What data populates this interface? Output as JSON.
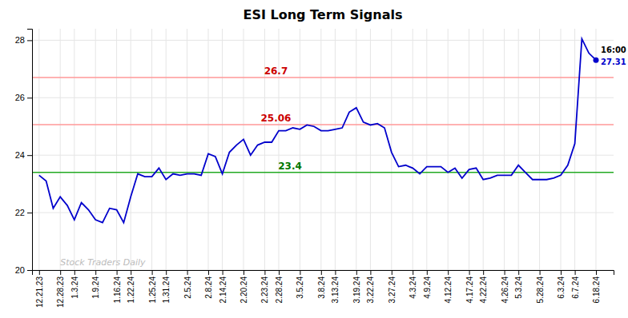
{
  "chart_data": {
    "type": "line",
    "title": "ESI Long Term Signals",
    "color": "#0000CC",
    "grid": true,
    "ylim": [
      20,
      28.4
    ],
    "yticks": [
      20,
      22,
      24,
      26,
      28
    ],
    "categories": [
      "12.21.23",
      null,
      null,
      "12.28.23",
      null,
      "1.3.24",
      null,
      null,
      "1.9.24",
      null,
      null,
      "1.16.24",
      null,
      "1.22.24",
      null,
      null,
      "1.25.24",
      null,
      "1.31.24",
      null,
      null,
      "2.5.24",
      null,
      null,
      "2.8.24",
      null,
      "2.14.24",
      null,
      null,
      "2.20.24",
      null,
      null,
      "2.23.24",
      null,
      "2.28.24",
      null,
      null,
      "3.5.24",
      null,
      null,
      "3.8.24",
      null,
      "3.13.24",
      null,
      null,
      "3.19.24",
      null,
      "3.22.24",
      null,
      null,
      "3.27.24",
      null,
      null,
      "4.3.24",
      null,
      "4.9.24",
      null,
      null,
      "4.12.24",
      null,
      null,
      "4.17.24",
      null,
      "4.22.24",
      null,
      null,
      "4.26.24",
      null,
      "5.3.24",
      null,
      null,
      "5.28.24",
      null,
      null,
      "6.3.24",
      null,
      "6.7.24",
      null,
      null,
      "6.18.24"
    ],
    "values": [
      23.3,
      23.1,
      22.15,
      22.55,
      22.25,
      21.75,
      22.35,
      22.1,
      21.75,
      21.65,
      22.15,
      22.1,
      21.65,
      22.55,
      23.35,
      23.25,
      23.25,
      23.55,
      23.15,
      23.35,
      23.3,
      23.35,
      23.35,
      23.3,
      24.05,
      23.95,
      23.35,
      24.1,
      24.35,
      24.55,
      24.0,
      24.35,
      24.45,
      24.45,
      24.85,
      24.85,
      24.95,
      24.9,
      25.05,
      25.0,
      24.85,
      24.85,
      24.9,
      24.95,
      25.5,
      25.65,
      25.15,
      25.05,
      25.1,
      24.95,
      24.1,
      23.6,
      23.65,
      23.55,
      23.35,
      23.6,
      23.6,
      23.6,
      23.4,
      23.55,
      23.2,
      23.5,
      23.55,
      23.15,
      23.2,
      23.3,
      23.3,
      23.3,
      23.65,
      23.4,
      23.15,
      23.15,
      23.15,
      23.2,
      23.3,
      23.65,
      24.4,
      28.05,
      27.55,
      27.31
    ],
    "value_labels": [
      null,
      null,
      null,
      null,
      null,
      null,
      null,
      null,
      null,
      null,
      null,
      null,
      null,
      null,
      null,
      null,
      null,
      null,
      null,
      null,
      null,
      null,
      null,
      null,
      null,
      null,
      null,
      null,
      null,
      null,
      null,
      null,
      null,
      null,
      null,
      null,
      null,
      null,
      null,
      null,
      null,
      null,
      null,
      null,
      null,
      null,
      null,
      null,
      null,
      null,
      null,
      null,
      null,
      null,
      null,
      null,
      null,
      null,
      null,
      null,
      null,
      null,
      null,
      null,
      null,
      null,
      null,
      null,
      null,
      null,
      null,
      null,
      null,
      null,
      null,
      null,
      null,
      null,
      null,
      "27.31"
    ],
    "reference_lines": [
      {
        "value": 23.4,
        "label": "23.4",
        "color": "#22AA22",
        "label_color": "#007700"
      },
      {
        "value": 25.06,
        "label": "25.06",
        "color": "#FF9999",
        "label_color": "#CC0000"
      },
      {
        "value": 26.7,
        "label": "26.7",
        "color": "#FF9999",
        "label_color": "#CC0000"
      }
    ],
    "annotations": [
      {
        "text": "Stock Traders Daily",
        "color": "#BBBBBB"
      },
      {
        "text": "16:00",
        "color": "#000000"
      }
    ]
  }
}
